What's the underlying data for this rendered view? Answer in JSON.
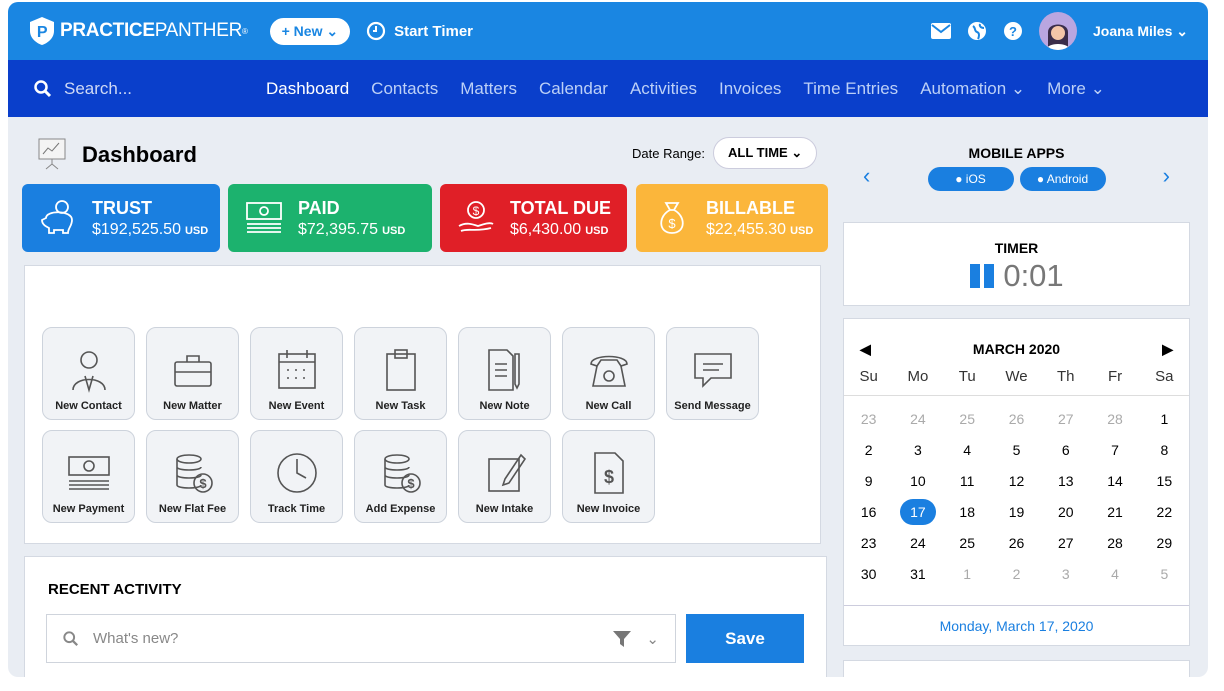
{
  "header": {
    "brand_bold": "PRACTICE",
    "brand_light": "PANTHER",
    "new_label": "+ New",
    "timer_label": "Start Timer",
    "user_name": "Joana Miles"
  },
  "nav": {
    "search_placeholder": "Search...",
    "items": [
      "Dashboard",
      "Contacts",
      "Matters",
      "Calendar",
      "Activities",
      "Invoices",
      "Time Entries",
      "Automation",
      "More"
    ]
  },
  "dashboard": {
    "title": "Dashboard",
    "date_range_label": "Date Range:",
    "date_range_value": "ALL TIME"
  },
  "cards": [
    {
      "title": "TRUST",
      "amount": "$192,525.50",
      "currency": "USD",
      "color": "#1a7fe0"
    },
    {
      "title": "PAID",
      "amount": "$72,395.75",
      "currency": "USD",
      "color": "#1cb26e"
    },
    {
      "title": "TOTAL DUE",
      "amount": "$6,430.00",
      "currency": "USD",
      "color": "#e01f27"
    },
    {
      "title": "BILLABLE",
      "amount": "$22,455.30",
      "currency": "USD",
      "color": "#fbb63b"
    }
  ],
  "actions": [
    "New Contact",
    "New Matter",
    "New Event",
    "New Task",
    "New Note",
    "New Call",
    "Send Message",
    "New Payment",
    "New Flat Fee",
    "Track Time",
    "Add Expense",
    "New Intake",
    "New Invoice"
  ],
  "recent": {
    "title": "RECENT ACTIVITY",
    "placeholder": "What's new?",
    "save_label": "Save"
  },
  "mobile": {
    "title": "MOBILE APPS",
    "ios": "iOS",
    "android": "Android"
  },
  "timer": {
    "title": "TIMER",
    "value": "0:01"
  },
  "calendar": {
    "month": "MARCH 2020",
    "weekdays": [
      "Su",
      "Mo",
      "Tu",
      "We",
      "Th",
      "Fr",
      "Sa"
    ],
    "days": [
      "23",
      "24",
      "25",
      "26",
      "27",
      "28",
      "1",
      "2",
      "3",
      "4",
      "5",
      "6",
      "7",
      "8",
      "9",
      "10",
      "11",
      "12",
      "13",
      "14",
      "15",
      "16",
      "17",
      "18",
      "19",
      "20",
      "21",
      "22",
      "23",
      "24",
      "25",
      "26",
      "27",
      "28",
      "29",
      "30",
      "31",
      "1",
      "2",
      "3",
      "4",
      "5"
    ],
    "selected": "17",
    "selected_date": "Monday, March 17, 2020"
  }
}
